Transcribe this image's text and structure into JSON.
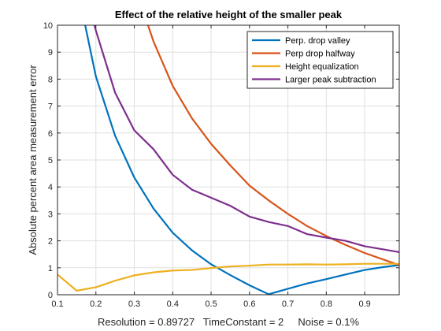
{
  "chart_data": {
    "type": "line",
    "title": "Effect of the relative height of the smaller peak",
    "xlabel": "Resolution = 0.89727   TimeConstant = 2     Noise = 0.1%",
    "ylabel": "Absolute percent area measurement error",
    "xlim": [
      0.1,
      0.99
    ],
    "ylim": [
      0,
      10
    ],
    "xticks": [
      0.1,
      0.2,
      0.3,
      0.4,
      0.5,
      0.6,
      0.7,
      0.8,
      0.9
    ],
    "yticks": [
      0,
      1,
      2,
      3,
      4,
      5,
      6,
      7,
      8,
      9,
      10
    ],
    "grid": true,
    "legend_position": "top-right",
    "series": [
      {
        "name": "Perp. drop valley",
        "color": "#0072BD",
        "x": [
          0.15,
          0.2,
          0.25,
          0.3,
          0.35,
          0.4,
          0.45,
          0.5,
          0.55,
          0.6,
          0.65,
          0.7,
          0.75,
          0.8,
          0.85,
          0.9,
          0.95,
          0.99
        ],
        "y": [
          11.5,
          8.1,
          5.9,
          4.35,
          3.2,
          2.3,
          1.65,
          1.13,
          0.73,
          0.35,
          0.02,
          0.22,
          0.42,
          0.58,
          0.75,
          0.92,
          1.03,
          1.1
        ]
      },
      {
        "name": "Perp drop halfway",
        "color": "#D95319",
        "x": [
          0.3,
          0.35,
          0.4,
          0.45,
          0.5,
          0.55,
          0.6,
          0.65,
          0.7,
          0.75,
          0.8,
          0.85,
          0.9,
          0.95,
          0.99
        ],
        "y": [
          11.5,
          9.4,
          7.75,
          6.55,
          5.6,
          4.8,
          4.05,
          3.5,
          3.0,
          2.55,
          2.18,
          1.85,
          1.55,
          1.3,
          1.1
        ]
      },
      {
        "name": "Height equalization",
        "color": "#EDB120",
        "x": [
          0.1,
          0.15,
          0.2,
          0.25,
          0.3,
          0.35,
          0.4,
          0.45,
          0.5,
          0.55,
          0.6,
          0.65,
          0.7,
          0.75,
          0.8,
          0.85,
          0.9,
          0.95,
          0.99
        ],
        "y": [
          0.75,
          0.15,
          0.28,
          0.52,
          0.72,
          0.83,
          0.9,
          0.92,
          0.99,
          1.05,
          1.08,
          1.12,
          1.12,
          1.13,
          1.12,
          1.13,
          1.15,
          1.15,
          1.15
        ]
      },
      {
        "name": "Larger peak subtraction",
        "color": "#7E2F8E",
        "x": [
          0.15,
          0.2,
          0.25,
          0.3,
          0.35,
          0.4,
          0.45,
          0.5,
          0.55,
          0.6,
          0.65,
          0.7,
          0.75,
          0.8,
          0.85,
          0.9,
          0.95,
          0.99
        ],
        "y": [
          12.5,
          9.8,
          7.5,
          6.1,
          5.4,
          4.45,
          3.9,
          3.6,
          3.3,
          2.9,
          2.7,
          2.55,
          2.25,
          2.12,
          2.0,
          1.8,
          1.68,
          1.58
        ]
      }
    ]
  }
}
